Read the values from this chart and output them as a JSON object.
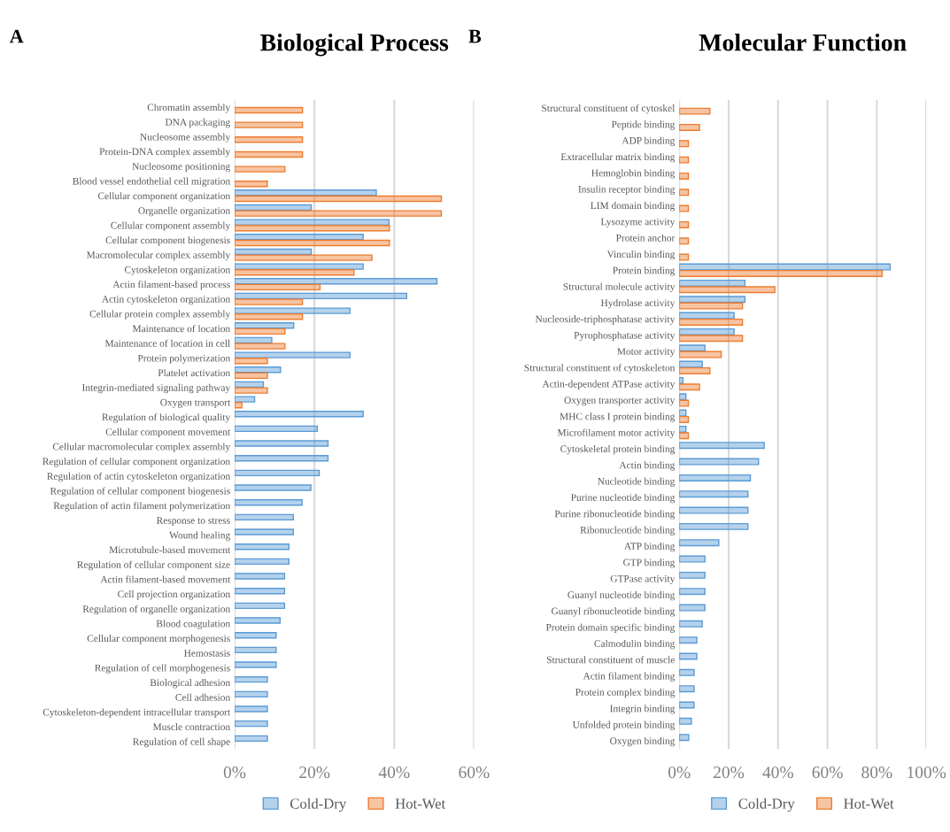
{
  "chart_data": [
    {
      "type": "bar",
      "orientation": "horizontal",
      "title": "Biological Process",
      "annotations": [
        "A"
      ],
      "categories": [
        "Chromatin assembly",
        "DNA packaging",
        "Nucleosome assembly",
        "Protein-DNA complex assembly",
        "Nucleosome positioning",
        "Blood vessel endothelial cell migration",
        "Cellular component organization",
        "Organelle organization",
        "Cellular component assembly",
        "Cellular component biogenesis",
        "Macromolecular complex assembly",
        "Cytoskeleton organization",
        "Actin filament-based process",
        "Actin cytoskeleton organization",
        "Cellular protein complex assembly",
        "Maintenance of location",
        "Maintenance of location in cell",
        "Protein polymerization",
        "Platelet activation",
        "Integrin-mediated signaling pathway",
        "Oxygen transport",
        "Regulation of biological quality",
        "Cellular component movement",
        "Cellular macromolecular complex assembly",
        "Regulation of cellular component organization",
        "Regulation of actin cytoskeleton organization",
        "Regulation of cellular component biogenesis",
        "Regulation of actin filament polymerization",
        "Response to stress",
        "Wound healing",
        "Microtubule-based movement",
        "Regulation of cellular component size",
        "Actin filament-based movement",
        "Cell projection organization",
        "Regulation of organelle organization",
        "Blood coagulation",
        "Cellular component morphogenesis",
        "Hemostasis",
        "Regulation of cell morphogenesis",
        "Biological adhesion",
        "Cell adhesion",
        "Cytoskeleton-dependent intracellular transport",
        "Muscle contraction",
        "Regulation of cell shape"
      ],
      "series": [
        {
          "name": "Cold-Dry",
          "color": "#5b9bd5",
          "values": [
            null,
            null,
            null,
            null,
            null,
            null,
            35.5,
            19.2,
            38.7,
            32.2,
            19.2,
            32.2,
            50.7,
            43.1,
            28.9,
            14.8,
            9.3,
            28.9,
            11.5,
            7.2,
            5.0,
            32.2,
            20.7,
            23.4,
            23.4,
            21.2,
            19.1,
            16.9,
            14.7,
            14.7,
            13.6,
            13.6,
            12.5,
            12.5,
            12.5,
            11.4,
            10.4,
            10.4,
            10.4,
            8.2,
            8.2,
            8.2,
            8.2,
            8.2
          ]
        },
        {
          "name": "Hot-Wet",
          "color": "#ed7d31",
          "values": [
            17.0,
            17.0,
            17.0,
            17.0,
            12.6,
            8.2,
            51.8,
            51.8,
            38.8,
            38.8,
            34.4,
            29.9,
            21.4,
            17.0,
            17.0,
            12.6,
            12.6,
            8.2,
            8.2,
            8.2,
            1.8,
            null,
            null,
            null,
            null,
            null,
            null,
            null,
            null,
            null,
            null,
            null,
            null,
            null,
            null,
            null,
            null,
            null,
            null,
            null,
            null,
            null,
            null,
            null
          ]
        }
      ],
      "xlim": [
        0,
        60
      ],
      "xticks": [
        {
          "value": 0,
          "label": "0%"
        },
        {
          "value": 20,
          "label": "20%"
        },
        {
          "value": 40,
          "label": "40%"
        },
        {
          "value": 60,
          "label": "60%"
        }
      ],
      "grid": "x",
      "legend": "bottom"
    },
    {
      "type": "bar",
      "orientation": "horizontal",
      "title": "Molecular Function",
      "annotations": [
        "B"
      ],
      "categories": [
        "Structural constituent of cytoskel",
        "Peptide binding",
        "ADP binding",
        "Extracellular matrix binding",
        "Hemoglobin binding",
        "Insulin receptor binding",
        "LIM domain binding",
        "Lysozyme activity",
        "Protein anchor",
        "Vinculin binding",
        "Protein binding",
        "Structural molecule activity",
        "Hydrolase activity",
        "Nucleoside-triphosphatase activity",
        "Pyrophosphatase activity",
        "Motor activity",
        "Structural constituent of cytoskeleton",
        "Actin-dependent ATPase activity",
        "Oxygen transporter activity",
        "MHC class I protein binding",
        "Microfilament motor activity",
        "Cytoskeletal protein binding",
        "Actin binding",
        "Nucleotide binding",
        "Purine nucleotide binding",
        "Purine ribonucleotide binding",
        "Ribonucleotide binding",
        "ATP binding",
        "GTP binding",
        "GTPase activity",
        "Guanyl nucleotide binding",
        "Guanyl ribonucleotide binding",
        "Protein domain specific binding",
        "Calmodulin binding",
        "Structural constituent of muscle",
        "Actin filament binding",
        "Protein complex binding",
        "Integrin binding",
        "Unfolded protein binding",
        "Oxygen binding"
      ],
      "series": [
        {
          "name": "Cold-Dry",
          "color": "#5b9bd5",
          "values": [
            null,
            null,
            null,
            null,
            null,
            null,
            null,
            null,
            null,
            null,
            85.4,
            26.6,
            26.6,
            22.2,
            22.2,
            10.4,
            9.3,
            1.5,
            2.7,
            2.7,
            2.7,
            34.4,
            32.1,
            28.8,
            27.8,
            27.8,
            27.8,
            16.0,
            10.4,
            10.4,
            10.4,
            10.4,
            9.3,
            7.1,
            7.1,
            6.0,
            6.0,
            6.0,
            4.9,
            3.8
          ]
        },
        {
          "name": "Hot-Wet",
          "color": "#ed7d31",
          "values": [
            12.4,
            8.2,
            3.7,
            3.7,
            3.7,
            3.7,
            3.7,
            3.7,
            3.7,
            3.7,
            82.1,
            38.7,
            25.6,
            25.6,
            25.6,
            17.0,
            12.4,
            8.2,
            3.7,
            3.7,
            3.7,
            null,
            null,
            null,
            null,
            null,
            null,
            null,
            null,
            null,
            null,
            null,
            null,
            null,
            null,
            null,
            null,
            null,
            null,
            null
          ]
        }
      ],
      "xlim": [
        0,
        100
      ],
      "xticks": [
        {
          "value": 0,
          "label": "0%"
        },
        {
          "value": 20,
          "label": "20%"
        },
        {
          "value": 40,
          "label": "40%"
        },
        {
          "value": 60,
          "label": "60%"
        },
        {
          "value": 80,
          "label": "80%"
        },
        {
          "value": 100,
          "label": "100%"
        }
      ],
      "grid": "x",
      "legend": "bottom"
    }
  ]
}
